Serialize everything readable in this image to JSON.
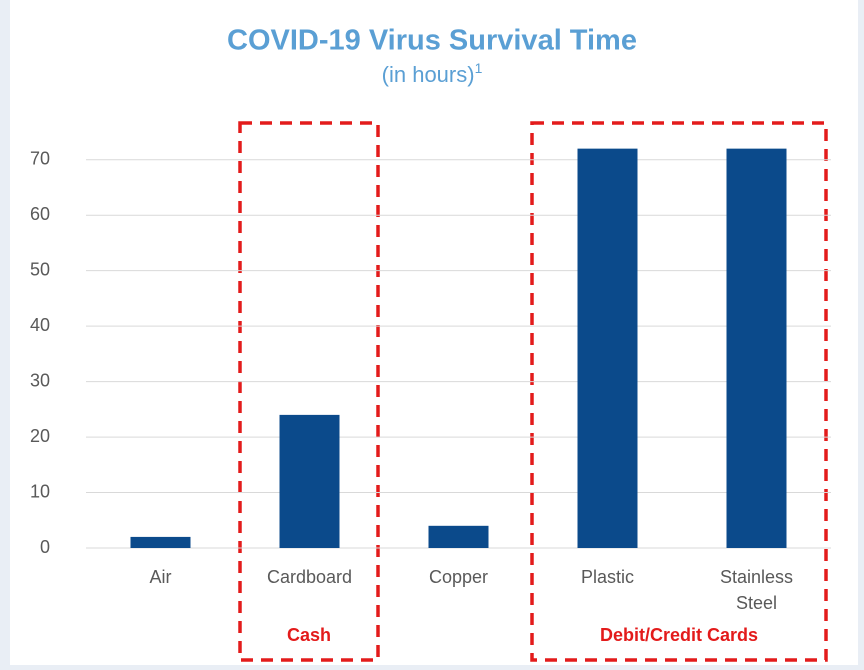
{
  "chart_data": {
    "type": "bar",
    "title": "COVID-19 Virus Survival Time",
    "subtitle": "(in hours)",
    "subtitle_note": "1",
    "categories": [
      "Air",
      "Cardboard",
      "Copper",
      "Plastic",
      "Stainless Steel"
    ],
    "values": [
      2,
      24,
      4,
      72,
      72
    ],
    "color": "#0b4a8b",
    "ylim": [
      0,
      75
    ],
    "yticks": [
      0,
      10,
      20,
      30,
      40,
      50,
      60,
      70
    ],
    "grid": true,
    "annotations": [
      "Cash",
      "Debit/Credit Cards"
    ]
  }
}
